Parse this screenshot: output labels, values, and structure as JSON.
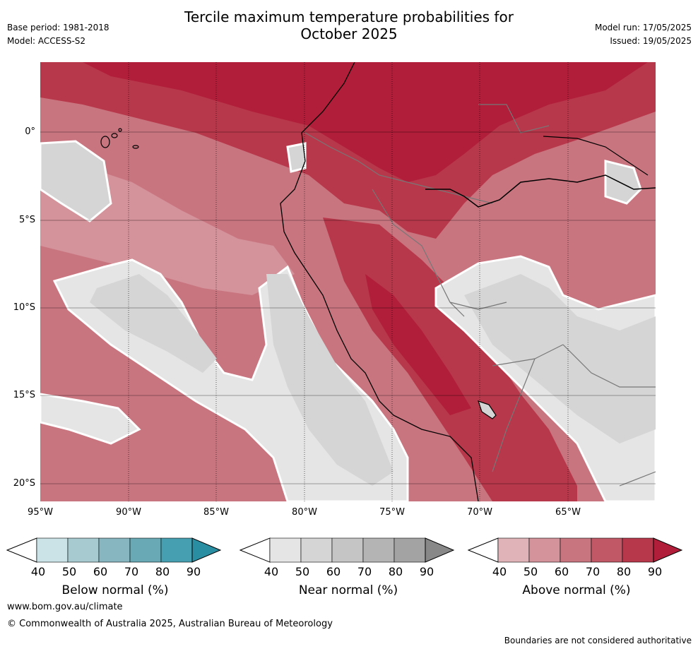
{
  "header": {
    "base_period": "Base period: 1981-2018",
    "model": "Model: ACCESS-S2",
    "title_line1": "Tercile maximum temperature probabilities for",
    "title_line2": "October 2025",
    "model_run": "Model run: 17/05/2025",
    "issued": "Issued: 19/05/2025"
  },
  "axes": {
    "lat_labels": [
      "0°",
      "5°S",
      "10°S",
      "15°S",
      "20°S"
    ],
    "lon_labels": [
      "95°W",
      "90°W",
      "85°W",
      "80°W",
      "75°W",
      "70°W",
      "65°W"
    ]
  },
  "legends": {
    "ticks": [
      "40",
      "50",
      "60",
      "70",
      "80",
      "90"
    ],
    "below": {
      "label": "Below normal (%)",
      "colors": [
        "#ffffff",
        "#cbe3e7",
        "#a6cacf",
        "#87b6c0",
        "#68a9b5",
        "#469fb0",
        "#2a8ea2"
      ]
    },
    "near": {
      "label": "Near normal (%)",
      "colors": [
        "#ffffff",
        "#e5e5e5",
        "#d5d5d5",
        "#c5c5c5",
        "#b4b4b4",
        "#a3a3a3",
        "#888888"
      ]
    },
    "above": {
      "label": "Above normal (%)",
      "colors": [
        "#ffffff",
        "#e0b3b8",
        "#d4929a",
        "#c97580",
        "#c05865",
        "#b8384b",
        "#b01e3a"
      ]
    }
  },
  "footer": {
    "url": "www.bom.gov.au/climate",
    "copyright": "© Commonwealth of Australia 2025, Australian Bureau of Meteorology",
    "disclaimer": "Boundaries are not considered authoritative"
  }
}
